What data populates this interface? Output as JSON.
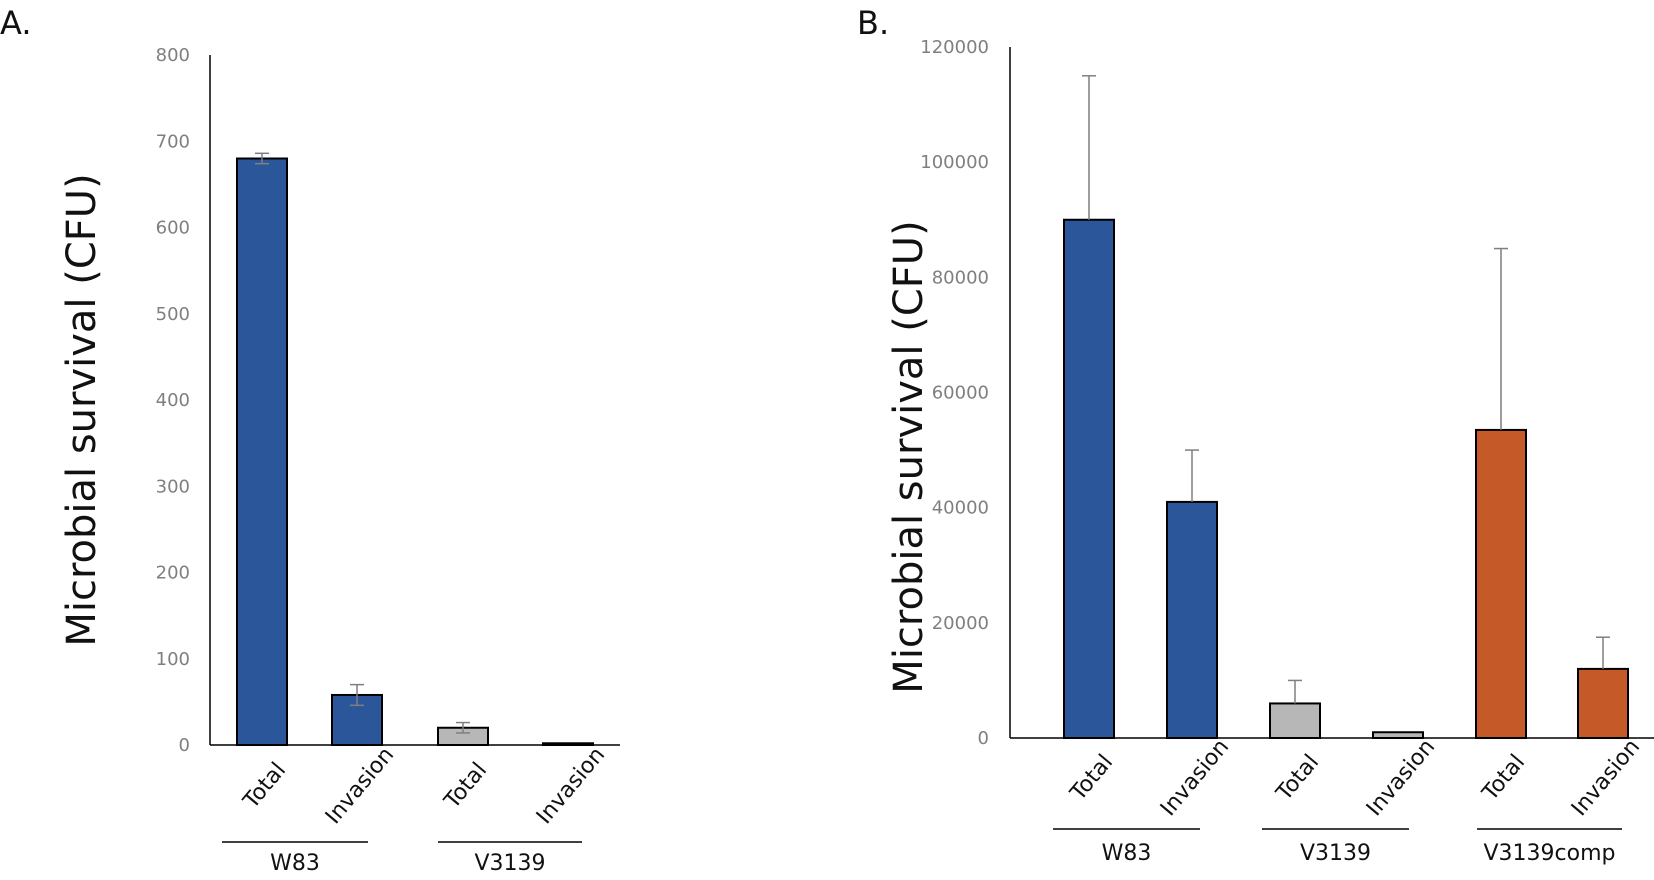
{
  "chart_data": [
    {
      "type": "bar",
      "panel_label": "A.",
      "title": "",
      "xlabel": "",
      "ylabel": "Microbial survival (CFU)",
      "ylim": [
        0,
        800
      ],
      "yticks": [
        0,
        100,
        200,
        300,
        400,
        500,
        600,
        700,
        800
      ],
      "ytick_labels": [
        "0",
        "100",
        "200",
        "300",
        "400",
        "500",
        "600",
        "700",
        "800"
      ],
      "grid": false,
      "categories": [
        "Total",
        "Invasion",
        "Total",
        "Invasion"
      ],
      "values": [
        680,
        58,
        20,
        2
      ],
      "errors": [
        6,
        12,
        6,
        0
      ],
      "colors": [
        "#2b579a",
        "#2b579a",
        "#b7b7b7",
        "#b7b7b7"
      ],
      "groups": [
        {
          "label": "W83",
          "members": [
            0,
            1
          ]
        },
        {
          "label": "V3139",
          "members": [
            2,
            3
          ]
        }
      ]
    },
    {
      "type": "bar",
      "panel_label": "B.",
      "title": "",
      "xlabel": "",
      "ylabel": "Microbial survival (CFU)",
      "ylim": [
        0,
        120000
      ],
      "yticks": [
        0,
        20000,
        40000,
        60000,
        80000,
        100000,
        120000
      ],
      "ytick_labels": [
        "0",
        "20000",
        "40000",
        "60000",
        "80000",
        "100000",
        "120000"
      ],
      "grid": false,
      "categories": [
        "Total",
        "Invasion",
        "Total",
        "Invasion",
        "Total",
        "Invasion"
      ],
      "values": [
        90000,
        41000,
        6000,
        1000,
        53500,
        12000
      ],
      "errors": [
        25000,
        9000,
        4000,
        0,
        31500,
        5500
      ],
      "colors": [
        "#2b579a",
        "#2b579a",
        "#b7b7b7",
        "#b7b7b7",
        "#c55a28",
        "#c55a28"
      ],
      "groups": [
        {
          "label": "W83",
          "members": [
            0,
            1
          ]
        },
        {
          "label": "V3139",
          "members": [
            2,
            3
          ]
        },
        {
          "label": "V3139comp",
          "members": [
            4,
            5
          ]
        }
      ]
    }
  ]
}
